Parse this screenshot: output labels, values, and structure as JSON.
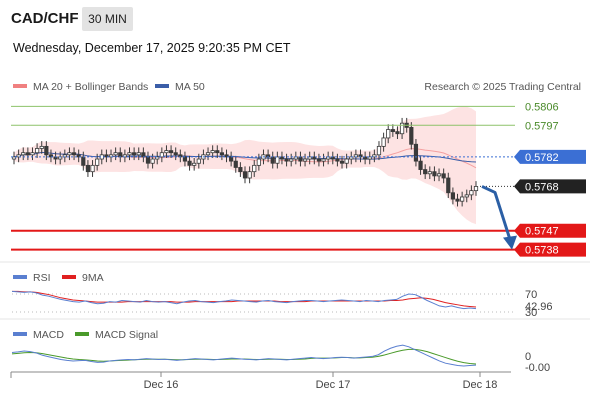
{
  "header": {
    "symbol": "CAD/CHF",
    "timeframe": "30 MIN",
    "timestamp": "Wednesday, December 17, 2025 9:20:35 PM CET"
  },
  "colors": {
    "bb_legend": "#f08080",
    "bb_band": "#fde3e3",
    "ma20": "#f4a0a0",
    "ma50": "#3b5ea8",
    "candle": "#3a3a3a",
    "resistance": "#8dc26a",
    "resistance_text": "#4a8a2a",
    "support": "#e31818",
    "pivot": "#3b6fd4",
    "last": "#222222",
    "rsi": "#5a7fd0",
    "rsi_ma": "#e02020",
    "macd": "#5a7fd0",
    "macd_signal": "#4a9a2a",
    "arrow": "#2b5fa5"
  },
  "legend_main": {
    "bb": "MA 20 + Bollinger Bands",
    "ma50": "MA 50",
    "credit": "Research © 2025 Trading Central"
  },
  "legend_rsi": {
    "rsi": "RSI",
    "ma": "9MA"
  },
  "legend_macd": {
    "macd": "MACD",
    "signal": "MACD Signal"
  },
  "chart_data": [
    {
      "type": "candlestick",
      "ylim": [
        0.5735,
        0.5809
      ],
      "x_ticks": [
        "Dec 16",
        "Dec 17",
        "Dec 18"
      ],
      "levels": {
        "resistance": [
          "0.5806",
          "0.5797"
        ],
        "pivot": "0.5782",
        "last": "0.5768",
        "support": [
          "0.5747",
          "0.5738"
        ]
      },
      "forecast_arrow": {
        "from": 0.5768,
        "to": 0.5739
      },
      "series": [
        {
          "name": "Close",
          "values": [
            0.5782,
            0.5783,
            0.5784,
            0.5783,
            0.5784,
            0.5786,
            0.5787,
            0.5783,
            0.5782,
            0.5781,
            0.5782,
            0.5783,
            0.5784,
            0.5783,
            0.5782,
            0.5778,
            0.5775,
            0.5778,
            0.5781,
            0.5783,
            0.5782,
            0.5783,
            0.5784,
            0.5782,
            0.5783,
            0.5784,
            0.5783,
            0.5784,
            0.5782,
            0.5779,
            0.5781,
            0.5782,
            0.5784,
            0.5785,
            0.5784,
            0.5783,
            0.5782,
            0.578,
            0.5778,
            0.5779,
            0.5781,
            0.5783,
            0.5784,
            0.5785,
            0.5784,
            0.5783,
            0.5782,
            0.578,
            0.5777,
            0.5775,
            0.5772,
            0.5775,
            0.5778,
            0.5781,
            0.5783,
            0.5782,
            0.5779,
            0.5782,
            0.5781,
            0.578,
            0.5781,
            0.5782,
            0.578,
            0.5781,
            0.5782,
            0.5781,
            0.578,
            0.5781,
            0.5782,
            0.5781,
            0.578,
            0.5779,
            0.5781,
            0.5782,
            0.5783,
            0.5782,
            0.5781,
            0.5782,
            0.5783,
            0.5787,
            0.5791,
            0.5795,
            0.5794,
            0.5793,
            0.5798,
            0.5796,
            0.5788,
            0.578,
            0.5776,
            0.5774,
            0.5775,
            0.5773,
            0.5774,
            0.5772,
            0.5765,
            0.5762,
            0.5761,
            0.5763,
            0.5764,
            0.5766,
            0.5768
          ]
        }
      ]
    },
    {
      "type": "line",
      "title": "RSI",
      "y_ticks": [
        "70",
        "42.96",
        "30"
      ],
      "series": [
        {
          "name": "RSI",
          "values": [
            67,
            66,
            65,
            66,
            64,
            60,
            58,
            55,
            52,
            50,
            48,
            47,
            49,
            46,
            44,
            45,
            48,
            47,
            50,
            49,
            48,
            47,
            50,
            48,
            47,
            48,
            46,
            44,
            47,
            49,
            50,
            48,
            47,
            46,
            48,
            49,
            51,
            50,
            49,
            48,
            47,
            49,
            50,
            48,
            47,
            46,
            48,
            49,
            50,
            50,
            49,
            48,
            49,
            50,
            51,
            50,
            49,
            48,
            50,
            49,
            48,
            50,
            51,
            52,
            58,
            62,
            61,
            56,
            50,
            45,
            40,
            38,
            40,
            37,
            35,
            36,
            35
          ]
        },
        {
          "name": "9MA",
          "values": [
            67,
            67,
            66,
            66,
            65,
            63,
            61,
            58,
            55,
            53,
            51,
            50,
            49,
            48,
            47,
            47,
            47,
            47,
            47,
            48,
            48,
            48,
            48,
            48,
            48,
            48,
            48,
            47,
            47,
            47,
            48,
            48,
            48,
            48,
            48,
            48,
            48,
            49,
            49,
            49,
            49,
            49,
            49,
            49,
            48,
            48,
            48,
            48,
            48,
            49,
            49,
            49,
            49,
            49,
            49,
            49,
            49,
            49,
            49,
            49,
            49,
            49,
            50,
            50,
            51,
            53,
            54,
            55,
            54,
            52,
            49,
            46,
            44,
            42,
            40,
            39,
            38
          ]
        }
      ]
    },
    {
      "type": "line",
      "title": "MACD",
      "y_ticks": [
        "0",
        "-0.00"
      ],
      "series": [
        {
          "name": "MACD",
          "values": [
            2,
            2.2,
            2.5,
            2.3,
            1.8,
            1.0,
            0.5,
            0.0,
            -0.5,
            -0.8,
            -1.0,
            -0.9,
            -0.8,
            -1.2,
            -1.5,
            -1.4,
            -1.0,
            -0.8,
            -0.6,
            -0.5,
            -0.6,
            -0.4,
            -0.2,
            -0.3,
            -0.5,
            -0.4,
            -0.6,
            -0.8,
            -0.6,
            -0.4,
            -0.2,
            -0.3,
            -0.5,
            -0.6,
            -0.4,
            -0.2,
            0.0,
            -0.2,
            -0.4,
            -0.5,
            -0.6,
            -0.4,
            -0.2,
            -0.3,
            -0.5,
            -0.6,
            -0.4,
            -0.2,
            0.0,
            0.2,
            0.0,
            -0.2,
            0.0,
            0.2,
            0.3,
            0.2,
            0.0,
            0.2,
            0.4,
            0.6,
            1.2,
            2.5,
            3.5,
            4.2,
            4.6,
            4.0,
            3.0,
            2.0,
            1.0,
            0.0,
            -1.0,
            -1.8,
            -2.2,
            -2.6,
            -2.8,
            -2.6,
            -2.5
          ]
        },
        {
          "name": "MACD Signal",
          "values": [
            1.5,
            1.7,
            1.9,
            2.0,
            1.9,
            1.6,
            1.2,
            0.8,
            0.4,
            0.0,
            -0.3,
            -0.5,
            -0.6,
            -0.8,
            -1.0,
            -1.1,
            -1.0,
            -0.9,
            -0.8,
            -0.7,
            -0.6,
            -0.5,
            -0.4,
            -0.4,
            -0.4,
            -0.4,
            -0.5,
            -0.6,
            -0.6,
            -0.5,
            -0.4,
            -0.4,
            -0.4,
            -0.5,
            -0.5,
            -0.4,
            -0.3,
            -0.3,
            -0.3,
            -0.4,
            -0.5,
            -0.5,
            -0.4,
            -0.4,
            -0.4,
            -0.5,
            -0.5,
            -0.4,
            -0.3,
            -0.1,
            0.0,
            0.0,
            0.0,
            0.1,
            0.2,
            0.2,
            0.1,
            0.1,
            0.2,
            0.3,
            0.6,
            1.1,
            1.7,
            2.3,
            2.8,
            3.1,
            3.1,
            2.8,
            2.3,
            1.6,
            0.9,
            0.2,
            -0.5,
            -1.1,
            -1.6,
            -1.9,
            -2.1
          ]
        }
      ]
    }
  ]
}
